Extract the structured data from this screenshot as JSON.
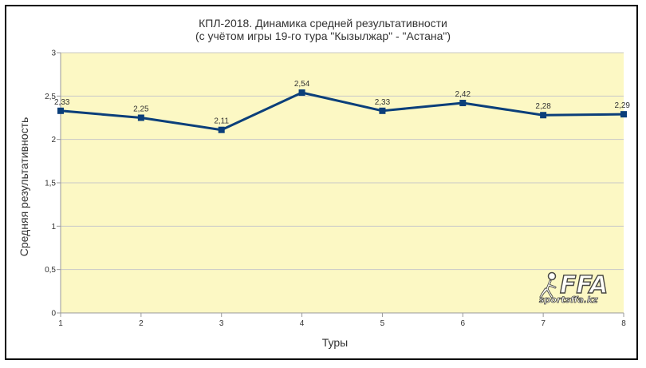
{
  "chart_data": {
    "type": "line",
    "title": "КПЛ-2018. Динамика средней результативности",
    "subtitle": "(с учётом игры 19-го тура \"Кызылжар\" - \"Астана\")",
    "xlabel": "Туры",
    "ylabel": "Средняя результативность",
    "x": [
      1,
      2,
      3,
      4,
      5,
      6,
      7,
      8
    ],
    "x_tick_labels": [
      "1",
      "2",
      "3",
      "4",
      "5",
      "6",
      "7",
      "8"
    ],
    "y_tick_labels": [
      "0",
      "0,5",
      "1",
      "1,5",
      "2",
      "2,5",
      "3"
    ],
    "y_ticks": [
      0,
      0.5,
      1,
      1.5,
      2,
      2.5,
      3
    ],
    "ylim": [
      0,
      3
    ],
    "series": [
      {
        "values": [
          2.33,
          2.25,
          2.11,
          2.54,
          2.33,
          2.42,
          2.28,
          2.29
        ],
        "labels": [
          "2,33",
          "2,25",
          "2,11",
          "2,54",
          "2,33",
          "2,42",
          "2,28",
          "2,29"
        ]
      }
    ],
    "grid": true,
    "colors": {
      "line": "#0b3f7a",
      "plot_background": "#fcf8c4",
      "grid": "#c8c8c8"
    }
  },
  "logo": {
    "name": "FFA",
    "site": "sportsffa.kz"
  }
}
